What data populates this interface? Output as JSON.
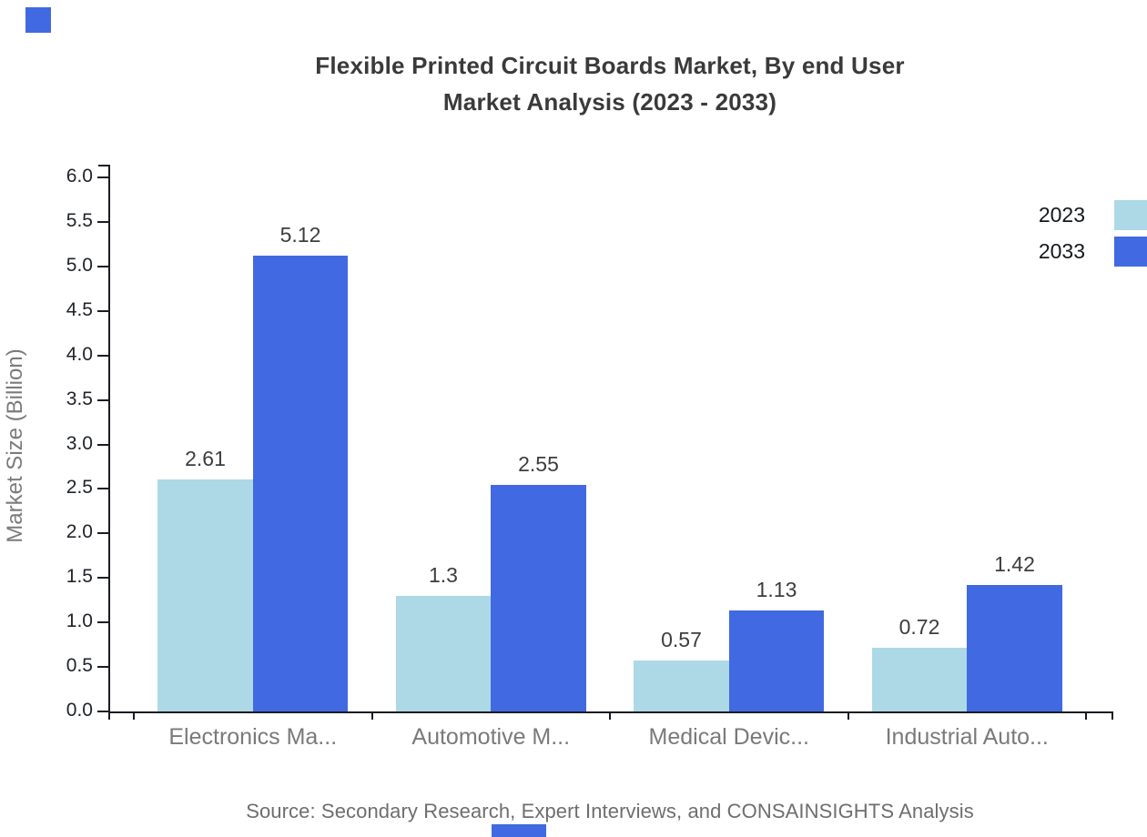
{
  "page": {
    "background_color": "#ffffff",
    "accent_color": "#4169E1"
  },
  "branding": {
    "top_left_square_color": "#4169E1",
    "bottom_tab_color": "#4169E1"
  },
  "title": {
    "line1": "Flexible Printed Circuit Boards Market, By end User",
    "line2": "Market Analysis (2023 - 2033)"
  },
  "chart_data": {
    "type": "bar",
    "title": "Flexible Printed Circuit Boards Market, By end User Market Analysis (2023 - 2033)",
    "categories": [
      "Electronics Ma...",
      "Automotive M...",
      "Medical Devic...",
      "Industrial Auto..."
    ],
    "series": [
      {
        "name": "2023",
        "color": "#ADD8E6",
        "values": [
          2.61,
          1.3,
          0.57,
          0.72
        ]
      },
      {
        "name": "2033",
        "color": "#4169E1",
        "values": [
          5.12,
          2.55,
          1.13,
          1.42
        ]
      }
    ],
    "value_labels": [
      [
        "2.61",
        "1.3",
        "0.57",
        "0.72"
      ],
      [
        "5.12",
        "2.55",
        "1.13",
        "1.42"
      ]
    ],
    "xlabel": "",
    "ylabel": "Market Size (Billion)",
    "ylim": [
      0.0,
      6.0
    ],
    "ytick_step": 0.5,
    "ytick_labels": [
      "0.0",
      "0.5",
      "1.0",
      "1.5",
      "2.0",
      "2.5",
      "3.0",
      "3.5",
      "4.0",
      "4.5",
      "5.0",
      "5.5",
      "6.0"
    ],
    "grid": false,
    "legend_position": "top-right",
    "axis_color": "#1a1c22"
  },
  "footer": {
    "source": "Source: Secondary Research, Expert Interviews, and CONSAINSIGHTS Analysis"
  }
}
